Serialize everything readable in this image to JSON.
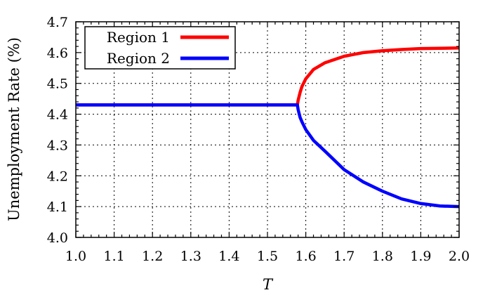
{
  "chart_data": {
    "type": "line",
    "xlabel": "T",
    "ylabel": "Unemployment Rate (%)",
    "xlim": [
      1.0,
      2.0
    ],
    "ylim": [
      4.0,
      4.7
    ],
    "x_ticks": [
      "1.0",
      "1.1",
      "1.2",
      "1.3",
      "1.4",
      "1.5",
      "1.6",
      "1.7",
      "1.8",
      "1.9",
      "2.0"
    ],
    "y_ticks": [
      "4.0",
      "4.1",
      "4.2",
      "4.3",
      "4.4",
      "4.5",
      "4.6",
      "4.7"
    ],
    "grid": true,
    "legend_position": "top-left",
    "series": [
      {
        "name": "Region 1",
        "color": "#ff0000",
        "x": [
          1.0,
          1.1,
          1.2,
          1.3,
          1.4,
          1.5,
          1.578,
          1.58,
          1.585,
          1.59,
          1.6,
          1.62,
          1.65,
          1.7,
          1.75,
          1.8,
          1.85,
          1.9,
          1.95,
          2.0
        ],
        "y": [
          4.43,
          4.43,
          4.43,
          4.43,
          4.43,
          4.43,
          4.43,
          4.445,
          4.47,
          4.49,
          4.515,
          4.545,
          4.567,
          4.588,
          4.6,
          4.606,
          4.61,
          4.613,
          4.614,
          4.615
        ]
      },
      {
        "name": "Region 2",
        "color": "#0000ff",
        "x": [
          1.0,
          1.1,
          1.2,
          1.3,
          1.4,
          1.5,
          1.578,
          1.58,
          1.585,
          1.59,
          1.6,
          1.62,
          1.65,
          1.7,
          1.75,
          1.8,
          1.85,
          1.9,
          1.95,
          2.0
        ],
        "y": [
          4.43,
          4.43,
          4.43,
          4.43,
          4.43,
          4.43,
          4.43,
          4.415,
          4.39,
          4.375,
          4.35,
          4.315,
          4.28,
          4.22,
          4.18,
          4.15,
          4.125,
          4.11,
          4.102,
          4.1
        ]
      }
    ]
  }
}
